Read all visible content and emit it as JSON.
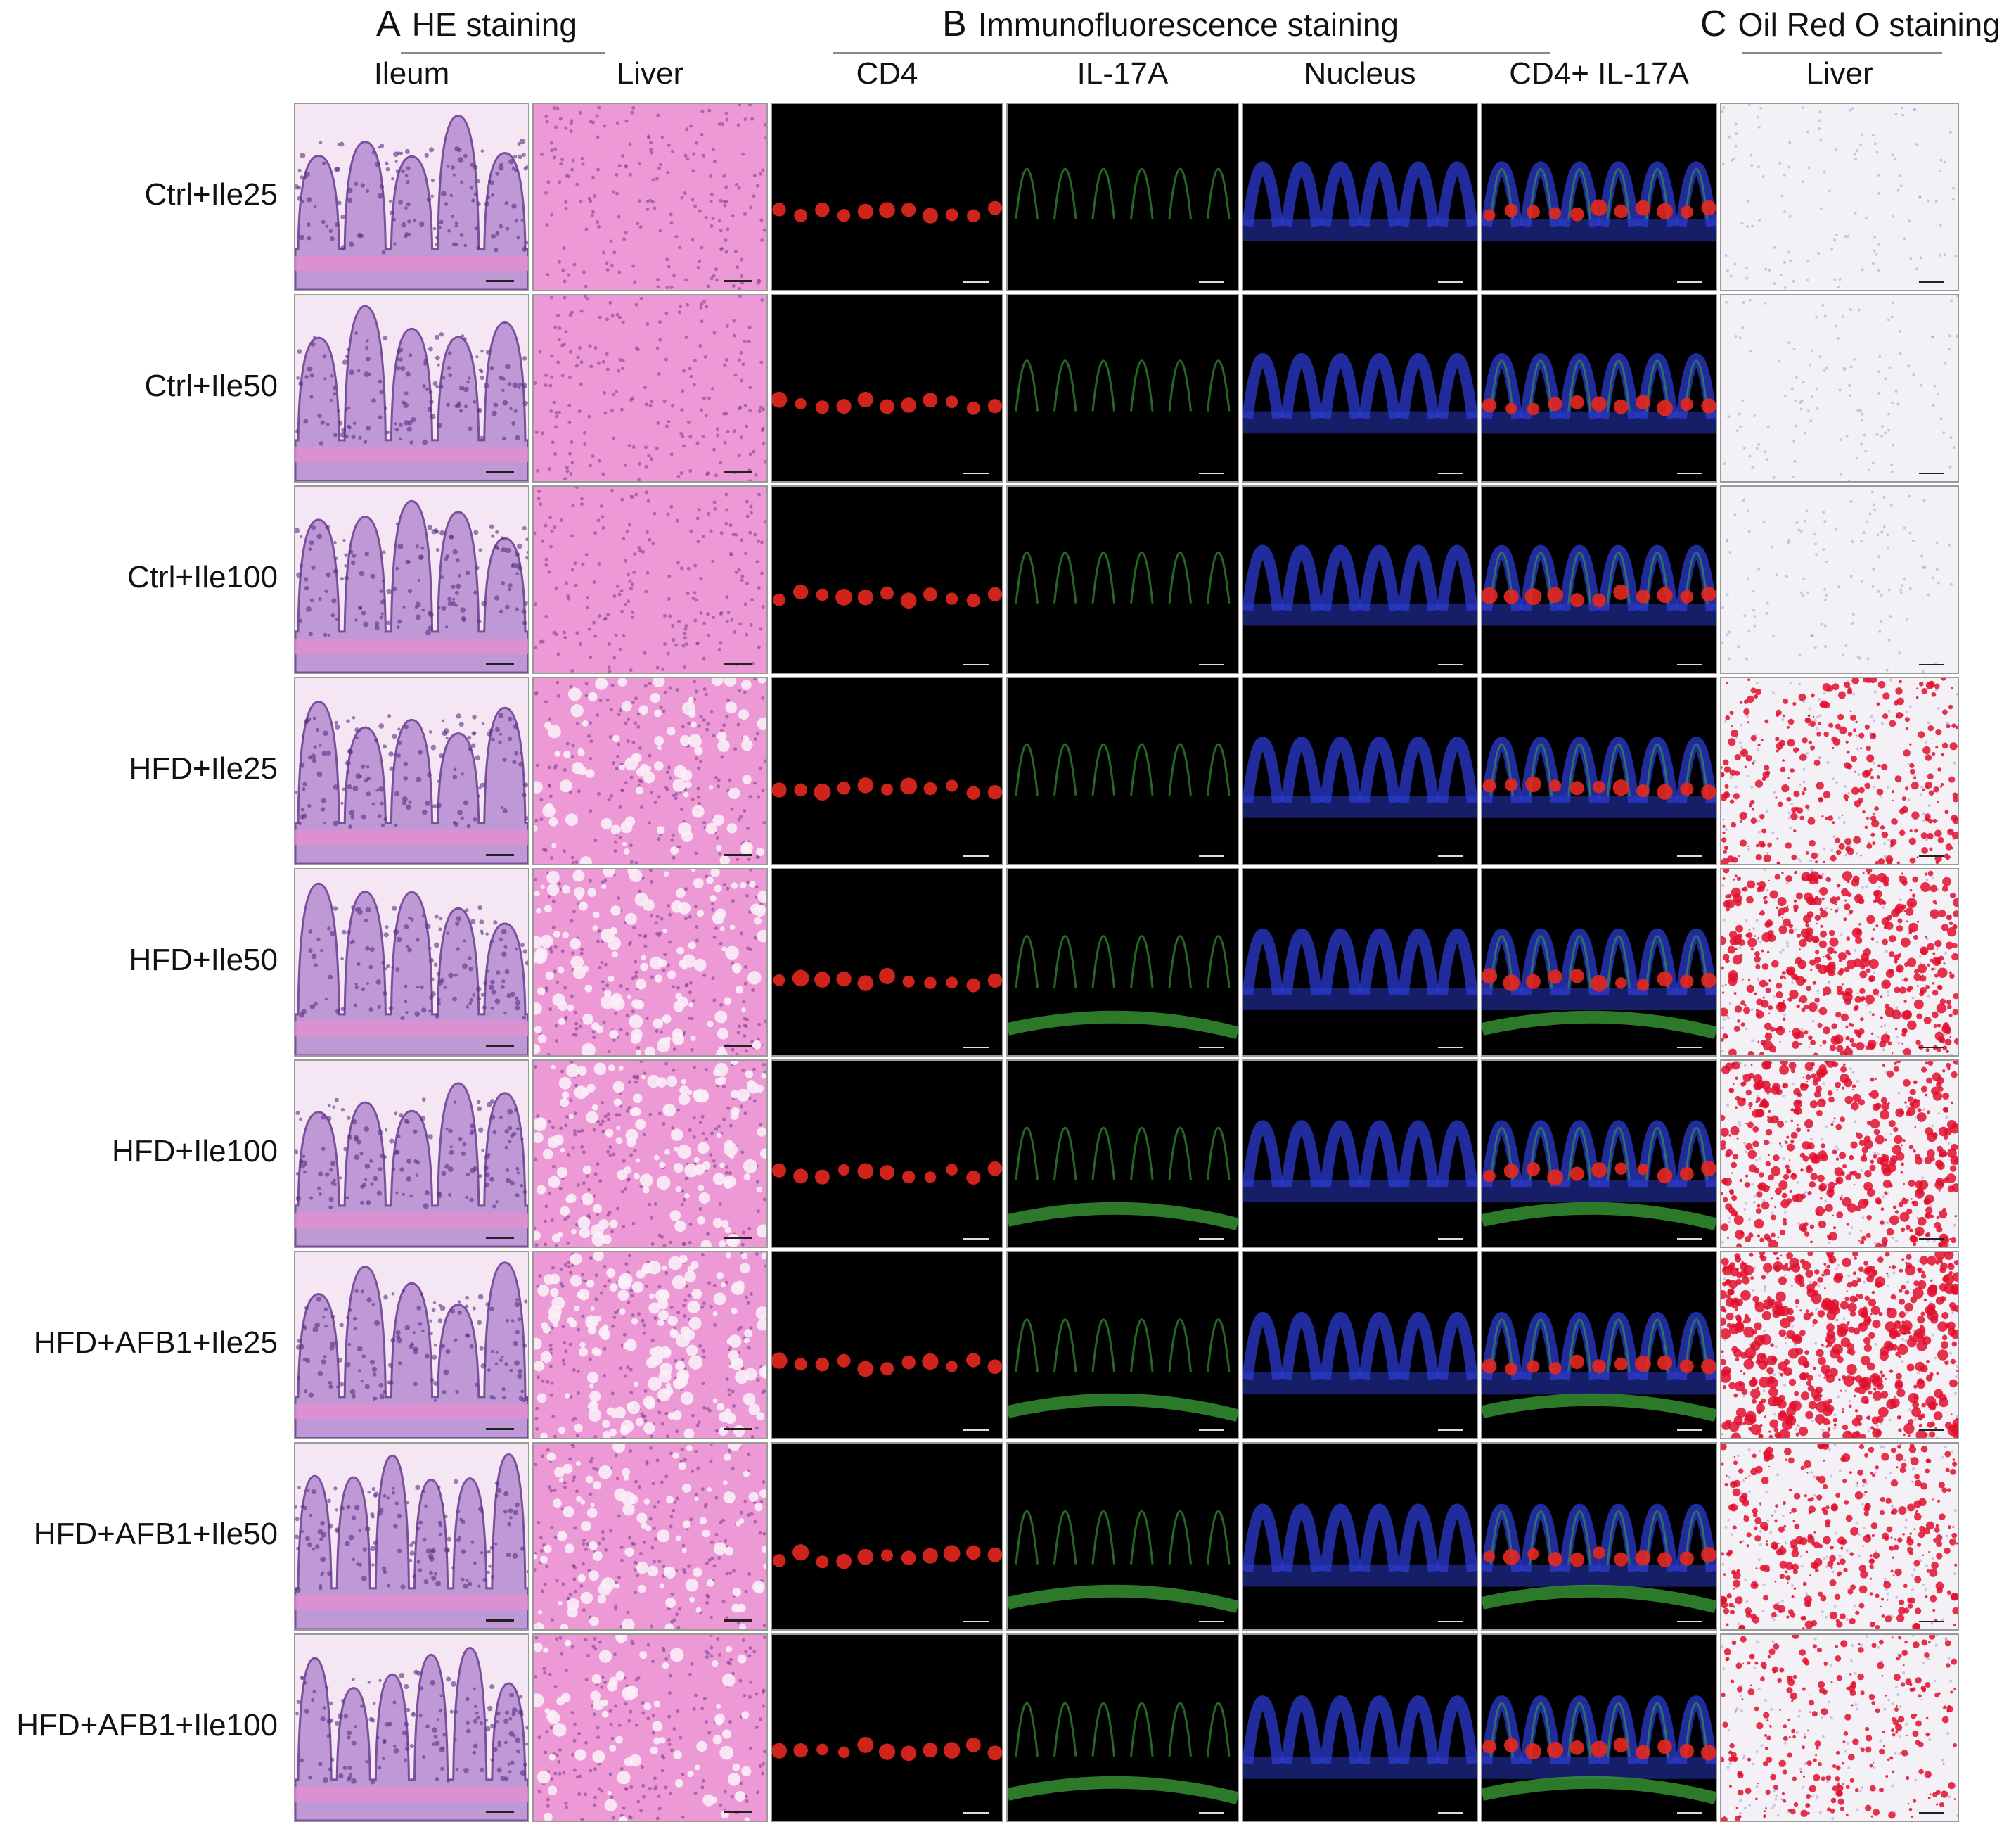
{
  "sections": [
    {
      "letter": "A",
      "title": "HE staining"
    },
    {
      "letter": "B",
      "title": "Immunofluorescence staining"
    },
    {
      "letter": "C",
      "title": "Oil Red O staining"
    }
  ],
  "columns": [
    {
      "key": "he-ileum",
      "label": "Ileum",
      "stain": "he-ileum"
    },
    {
      "key": "he-liver",
      "label": "Liver",
      "stain": "he-liver"
    },
    {
      "key": "cd4",
      "label": "CD4",
      "stain": "if-red"
    },
    {
      "key": "il17a",
      "label": "IL-17A",
      "stain": "if-green"
    },
    {
      "key": "nucleus",
      "label": "Nucleus",
      "stain": "if-blue"
    },
    {
      "key": "merge",
      "label": "CD4+ IL-17A",
      "stain": "if-merge"
    },
    {
      "key": "oro-liver",
      "label": "Liver",
      "stain": "oro"
    }
  ],
  "rows": [
    {
      "label": "Ctrl+Ile25",
      "lipid": 0
    },
    {
      "label": "Ctrl+Ile50",
      "lipid": 0
    },
    {
      "label": "Ctrl+Ile100",
      "lipid": 0
    },
    {
      "label": "HFD+Ile25",
      "lipid": 0.55
    },
    {
      "label": "HFD+Ile50",
      "lipid": 0.85
    },
    {
      "label": "HFD+Ile100",
      "lipid": 0.8
    },
    {
      "label": "HFD+AFB1+Ile25",
      "lipid": 1.0
    },
    {
      "label": "HFD+AFB1+Ile50",
      "lipid": 0.6
    },
    {
      "label": "HFD+AFB1+Ile100",
      "lipid": 0.45
    }
  ],
  "colors": {
    "he_ileum_bg": "#f4e6f2",
    "he_ileum_tissue": "#b58ad1",
    "he_liver": "#ec99d6",
    "cd4_red": "#e5281e",
    "il17a_green": "#3fae3a",
    "nucleus_blue": "#2b3bd0",
    "oro_bg": "#f4f1f6",
    "oro_red": "#e0102e"
  }
}
